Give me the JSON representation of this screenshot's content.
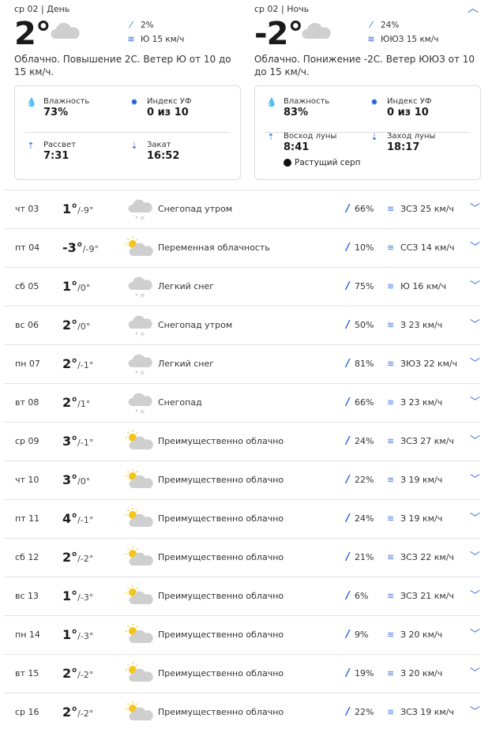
{
  "day": {
    "header": "ср 02 | День",
    "temp": "2°",
    "precip": "2%",
    "wind": "Ю 15 км/ч",
    "summary": "Облачно. Повышение 2С. Ветер Ю от 10 до 15 км/ч.",
    "humidity_label": "Влажность",
    "humidity": "73%",
    "uv_label": "Индекс УФ",
    "uv": "0 из 10",
    "sunrise_label": "Рассвет",
    "sunrise": "7:31",
    "sunset_label": "Закат",
    "sunset": "16:52"
  },
  "night": {
    "header": "ср 02 | Ночь",
    "temp": "-2°",
    "precip": "24%",
    "wind": "ЮЮЗ 15 км/ч",
    "summary": "Облачно. Понижение -2С. Ветер ЮЮЗ от 10 до 15 км/ч.",
    "humidity_label": "Влажность",
    "humidity": "83%",
    "uv_label": "Индекс УФ",
    "uv": "0 из 10",
    "moonrise_label": "Восход луны",
    "moonrise": "8:41",
    "moonset_label": "Заход луны",
    "moonset": "18:17",
    "moon_phase": "Растущий серп"
  },
  "colors": {
    "accent": "#1f5fd6",
    "cloud": "#cfcfcf",
    "sun": "#f5c518"
  },
  "days": [
    {
      "date": "чт 03",
      "hi": "1°",
      "lo": "/-9°",
      "icon": "snow",
      "desc": "Снегопад утром",
      "precip": "66%",
      "wind": "ЗСЗ 25 км/ч"
    },
    {
      "date": "пт 04",
      "hi": "-3°",
      "lo": "/-9°",
      "icon": "partly-cloudy",
      "desc": "Переменная облачность",
      "precip": "10%",
      "wind": "ССЗ 14 км/ч"
    },
    {
      "date": "сб 05",
      "hi": "1°",
      "lo": "/0°",
      "icon": "snow",
      "desc": "Легкий снег",
      "precip": "75%",
      "wind": "Ю 16 км/ч"
    },
    {
      "date": "вс 06",
      "hi": "2°",
      "lo": "/0°",
      "icon": "snow",
      "desc": "Снегопад утром",
      "precip": "50%",
      "wind": "З 23 км/ч"
    },
    {
      "date": "пн 07",
      "hi": "2°",
      "lo": "/-1°",
      "icon": "snow",
      "desc": "Легкий снег",
      "precip": "81%",
      "wind": "ЗЮЗ 22 км/ч"
    },
    {
      "date": "вт 08",
      "hi": "2°",
      "lo": "/1°",
      "icon": "snow",
      "desc": "Снегопад",
      "precip": "66%",
      "wind": "З 23 км/ч"
    },
    {
      "date": "ср 09",
      "hi": "3°",
      "lo": "/-1°",
      "icon": "partly-cloudy",
      "desc": "Преимущественно облачно",
      "precip": "24%",
      "wind": "ЗСЗ 27 км/ч"
    },
    {
      "date": "чт 10",
      "hi": "3°",
      "lo": "/0°",
      "icon": "partly-cloudy",
      "desc": "Преимущественно облачно",
      "precip": "22%",
      "wind": "З 19 км/ч"
    },
    {
      "date": "пт 11",
      "hi": "4°",
      "lo": "/-1°",
      "icon": "partly-cloudy",
      "desc": "Преимущественно облачно",
      "precip": "24%",
      "wind": "З 19 км/ч"
    },
    {
      "date": "сб 12",
      "hi": "2°",
      "lo": "/-2°",
      "icon": "partly-cloudy",
      "desc": "Преимущественно облачно",
      "precip": "21%",
      "wind": "ЗСЗ 22 км/ч"
    },
    {
      "date": "вс 13",
      "hi": "1°",
      "lo": "/-3°",
      "icon": "partly-cloudy",
      "desc": "Преимущественно облачно",
      "precip": "6%",
      "wind": "ЗСЗ 21 км/ч"
    },
    {
      "date": "пн 14",
      "hi": "1°",
      "lo": "/-3°",
      "icon": "partly-cloudy",
      "desc": "Преимущественно облачно",
      "precip": "9%",
      "wind": "З 20 км/ч"
    },
    {
      "date": "вт 15",
      "hi": "2°",
      "lo": "/-2°",
      "icon": "partly-cloudy",
      "desc": "Преимущественно облачно",
      "precip": "19%",
      "wind": "З 20 км/ч"
    },
    {
      "date": "ср 16",
      "hi": "2°",
      "lo": "/-2°",
      "icon": "partly-cloudy",
      "desc": "Преимущественно облачно",
      "precip": "22%",
      "wind": "ЗСЗ 19 км/ч"
    }
  ]
}
